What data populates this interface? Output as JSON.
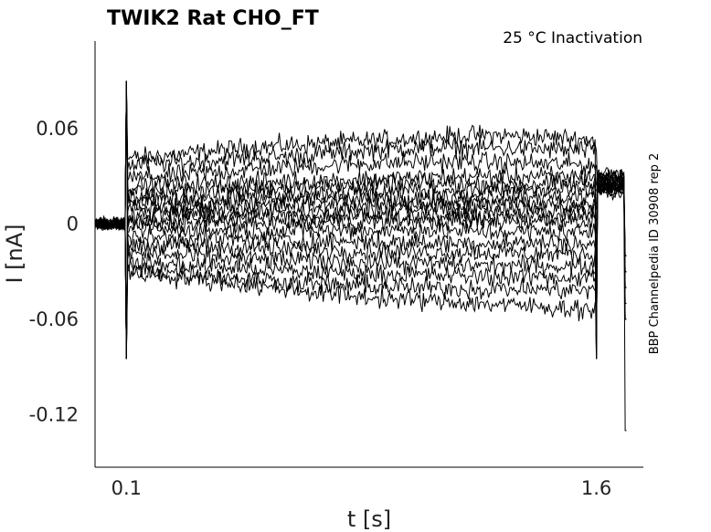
{
  "chart_data": {
    "type": "line",
    "title": "TWIK2  Rat  CHO_FT",
    "subtitle": "25 °C  Inactivation",
    "side_note": "BBP Channelpedia ID 30908 rep 2",
    "xlabel": "t [s]",
    "ylabel": "I [nA]",
    "xlim": [
      0.0,
      1.75
    ],
    "ylim": [
      -0.153,
      0.115
    ],
    "x_ticks": [
      0.1,
      1.6
    ],
    "x_tick_labels": [
      "0.1",
      "1.6"
    ],
    "y_ticks": [
      0.06,
      0,
      -0.06,
      -0.12
    ],
    "y_tick_labels": [
      "0.06",
      "0",
      "-0.06",
      "-0.12"
    ],
    "grid": false,
    "legend": "none",
    "color": "#000000",
    "pulse": [
      0.1,
      1.6
    ],
    "series": [
      {
        "values": [
          0.041,
          0.044,
          0.048,
          0.05,
          0.052,
          0.054,
          0.056,
          0.055,
          0.053
        ]
      },
      {
        "values": [
          0.037,
          0.039,
          0.041,
          0.043,
          0.046,
          0.048,
          0.048,
          0.047,
          0.046
        ]
      },
      {
        "values": [
          0.029,
          0.031,
          0.034,
          0.036,
          0.038,
          0.039,
          0.039,
          0.038,
          0.037
        ]
      },
      {
        "values": [
          0.024,
          0.025,
          0.026,
          0.027,
          0.028,
          0.029,
          0.03,
          0.03,
          0.03
        ]
      },
      {
        "values": [
          0.02,
          0.021,
          0.022,
          0.023,
          0.024,
          0.025,
          0.025,
          0.025,
          0.025
        ]
      },
      {
        "values": [
          0.016,
          0.017,
          0.018,
          0.019,
          0.02,
          0.021,
          0.021,
          0.021,
          0.021
        ]
      },
      {
        "values": [
          0.013,
          0.013,
          0.014,
          0.015,
          0.016,
          0.016,
          0.017,
          0.017,
          0.017
        ]
      },
      {
        "values": [
          0.01,
          0.01,
          0.011,
          0.012,
          0.012,
          0.013,
          0.013,
          0.013,
          0.013
        ]
      },
      {
        "values": [
          0.006,
          0.007,
          0.007,
          0.008,
          0.008,
          0.009,
          0.009,
          0.009,
          0.009
        ]
      },
      {
        "values": [
          0.003,
          0.003,
          0.004,
          0.004,
          0.005,
          0.005,
          0.005,
          0.005,
          0.005
        ]
      },
      {
        "values": [
          0.0,
          0.0,
          0.001,
          0.001,
          0.001,
          0.002,
          0.002,
          0.002,
          0.002
        ]
      },
      {
        "values": [
          -0.003,
          -0.004,
          -0.004,
          -0.004,
          -0.004,
          -0.004,
          -0.005,
          -0.005,
          -0.005
        ]
      },
      {
        "values": [
          -0.008,
          -0.009,
          -0.01,
          -0.011,
          -0.011,
          -0.012,
          -0.012,
          -0.012,
          -0.013
        ]
      },
      {
        "values": [
          -0.013,
          -0.014,
          -0.015,
          -0.016,
          -0.017,
          -0.018,
          -0.018,
          -0.019,
          -0.019
        ]
      },
      {
        "values": [
          -0.018,
          -0.02,
          -0.022,
          -0.023,
          -0.024,
          -0.025,
          -0.026,
          -0.026,
          -0.027
        ]
      },
      {
        "values": [
          -0.024,
          -0.026,
          -0.028,
          -0.03,
          -0.031,
          -0.032,
          -0.033,
          -0.033,
          -0.034
        ]
      },
      {
        "values": [
          -0.028,
          -0.031,
          -0.034,
          -0.037,
          -0.039,
          -0.04,
          -0.041,
          -0.041,
          -0.042
        ]
      },
      {
        "values": [
          -0.03,
          -0.034,
          -0.038,
          -0.042,
          -0.046,
          -0.048,
          -0.05,
          -0.052,
          -0.054
        ]
      }
    ]
  }
}
